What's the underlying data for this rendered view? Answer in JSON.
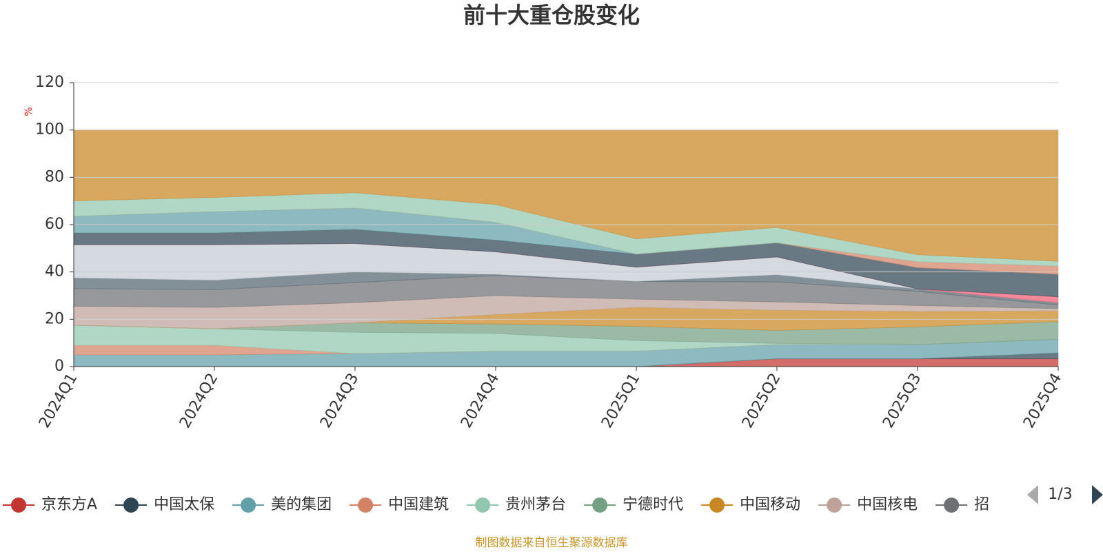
{
  "chart_data": {
    "type": "stacked-area",
    "title": "前十大重仓股变化",
    "y_unit": "%",
    "categories": [
      "2024Q1",
      "2024Q2",
      "2024Q3",
      "2024Q4",
      "2025Q1",
      "2025Q2",
      "2025Q3",
      "2025Q4"
    ],
    "ylim": [
      0,
      120
    ],
    "yticks": [
      0,
      20,
      40,
      60,
      80,
      100,
      120
    ],
    "grid": true,
    "series": [
      {
        "name": "京东方A",
        "color": "#c23531",
        "values": [
          0,
          0,
          0,
          0,
          0,
          3.3,
          3.3,
          3.3
        ]
      },
      {
        "name": "中国太保",
        "color": "#2f4554",
        "values": [
          0,
          0,
          0,
          0,
          0,
          0,
          0,
          2.5
        ]
      },
      {
        "name": "美的集团",
        "color": "#61a0a8",
        "values": [
          5,
          5,
          5.5,
          6.5,
          6.5,
          6,
          6,
          5.7
        ]
      },
      {
        "name": "中国建筑",
        "color": "#d48265",
        "values": [
          4,
          4,
          0,
          0,
          0,
          0,
          0,
          0
        ]
      },
      {
        "name": "贵州茅台",
        "color": "#91c7ae",
        "values": [
          8.5,
          7,
          9,
          7.5,
          4.5,
          0.5,
          0,
          0
        ]
      },
      {
        "name": "宁德时代",
        "color": "#749f83",
        "values": [
          0,
          0,
          4,
          4,
          6,
          5.5,
          7.5,
          7.5
        ]
      },
      {
        "name": "中国移动",
        "color": "#ca8622",
        "values": [
          0,
          0,
          0,
          4,
          8,
          8.5,
          6.5,
          4.5
        ]
      },
      {
        "name": "中国核电",
        "color": "#bda29a",
        "values": [
          8,
          9,
          8.5,
          8,
          3.5,
          3.5,
          2.5,
          1
        ]
      },
      {
        "name": "招",
        "color": "#6e7074",
        "values": [
          7.5,
          7.5,
          8.5,
          8.5,
          7.5,
          8.5,
          6,
          1.5
        ]
      },
      {
        "name": null,
        "color": "#546570",
        "values": [
          4.5,
          4,
          4.5,
          0.5,
          0,
          3,
          1,
          1
        ]
      },
      {
        "name": null,
        "color": "#c4ccd3",
        "values": [
          14,
          15,
          12,
          9.5,
          6,
          7.5,
          0,
          0
        ]
      },
      {
        "name": null,
        "color": "#f05b72",
        "values": [
          0,
          0,
          0,
          0,
          0,
          0,
          0,
          2.5
        ]
      },
      {
        "name": null,
        "color": "#2f4554",
        "values": [
          5,
          5,
          6,
          5,
          5.5,
          6,
          9,
          9.5
        ]
      },
      {
        "name": null,
        "color": "#61a0a8",
        "values": [
          7,
          9,
          9,
          7.5,
          0,
          0,
          0,
          0
        ]
      },
      {
        "name": null,
        "color": "#d48265",
        "values": [
          0,
          0,
          0,
          0,
          0,
          0,
          2.5,
          3.5
        ]
      },
      {
        "name": null,
        "color": "#91c7ae",
        "values": [
          6.5,
          6,
          6.5,
          7.5,
          6.5,
          6.5,
          3,
          2
        ]
      },
      {
        "name": null,
        "color": "#ca8622",
        "values": [
          30,
          28.5,
          26.5,
          31.5,
          46,
          41.2,
          52.7,
          55.5
        ]
      }
    ],
    "legend_page": "1/3",
    "source": "制图数据来自恒生聚源数据库"
  }
}
